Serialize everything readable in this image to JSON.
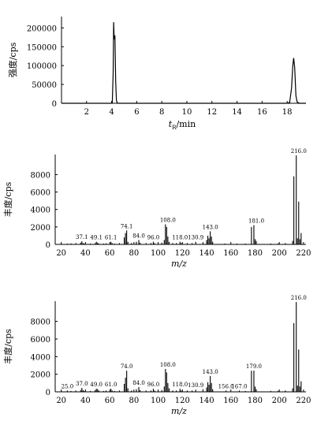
{
  "chart_data": [
    {
      "type": "line",
      "title": "",
      "ylabel": "强度/cps",
      "xlabel_main": "t",
      "xlabel_sub": "R",
      "xlabel_unit": "/min",
      "xlim": [
        0,
        19.5
      ],
      "ylim": [
        0,
        230000
      ],
      "xticks": [
        2,
        4,
        6,
        8,
        10,
        12,
        14,
        16,
        18
      ],
      "yticks": [
        0,
        50000,
        100000,
        150000,
        200000
      ],
      "grid": false,
      "series": [
        {
          "x": [
            0,
            3.95,
            4.05,
            4.12,
            4.16,
            4.2,
            4.26,
            4.32,
            4.38,
            4.45,
            4.6,
            17.9,
            18.2,
            18.35,
            18.45,
            18.52,
            18.6,
            18.7,
            18.8,
            19.0,
            19.5
          ],
          "y": [
            0,
            0,
            1000,
            80000,
            215000,
            170000,
            180000,
            60000,
            8000,
            500,
            0,
            0,
            2000,
            40000,
            100000,
            120000,
            95000,
            20000,
            3000,
            0,
            0
          ]
        }
      ]
    },
    {
      "type": "bar",
      "title": "",
      "ylabel": "丰度/cps",
      "xlabel": "m/z",
      "xlim": [
        15,
        222
      ],
      "ylim": [
        0,
        10300
      ],
      "xticks": [
        20,
        40,
        60,
        80,
        100,
        120,
        140,
        160,
        180,
        200,
        220
      ],
      "yticks": [
        0,
        2000,
        4000,
        6000,
        8000
      ],
      "grid": false,
      "peaks": [
        {
          "x": 20,
          "y": 80
        },
        {
          "x": 25,
          "y": 100
        },
        {
          "x": 28,
          "y": 120
        },
        {
          "x": 32,
          "y": 150
        },
        {
          "x": 36,
          "y": 200
        },
        {
          "x": 37,
          "y": 350
        },
        {
          "x": 38,
          "y": 150
        },
        {
          "x": 39,
          "y": 100
        },
        {
          "x": 44,
          "y": 100
        },
        {
          "x": 48,
          "y": 150
        },
        {
          "x": 49,
          "y": 300
        },
        {
          "x": 50,
          "y": 200
        },
        {
          "x": 51,
          "y": 100
        },
        {
          "x": 55,
          "y": 100
        },
        {
          "x": 57,
          "y": 120
        },
        {
          "x": 61,
          "y": 300
        },
        {
          "x": 62,
          "y": 150
        },
        {
          "x": 64,
          "y": 100
        },
        {
          "x": 68,
          "y": 150
        },
        {
          "x": 72,
          "y": 800
        },
        {
          "x": 73,
          "y": 1300
        },
        {
          "x": 74,
          "y": 1600
        },
        {
          "x": 75,
          "y": 300
        },
        {
          "x": 78,
          "y": 150
        },
        {
          "x": 82,
          "y": 300
        },
        {
          "x": 84,
          "y": 500
        },
        {
          "x": 85,
          "y": 200
        },
        {
          "x": 90,
          "y": 150
        },
        {
          "x": 94,
          "y": 150
        },
        {
          "x": 96,
          "y": 300
        },
        {
          "x": 97,
          "y": 150
        },
        {
          "x": 103,
          "y": 200
        },
        {
          "x": 105,
          "y": 500
        },
        {
          "x": 106,
          "y": 2300
        },
        {
          "x": 107,
          "y": 2000
        },
        {
          "x": 108,
          "y": 900
        },
        {
          "x": 109,
          "y": 300
        },
        {
          "x": 112,
          "y": 150
        },
        {
          "x": 115,
          "y": 150
        },
        {
          "x": 118,
          "y": 300
        },
        {
          "x": 119,
          "y": 150
        },
        {
          "x": 124,
          "y": 150
        },
        {
          "x": 128,
          "y": 150
        },
        {
          "x": 131,
          "y": 300
        },
        {
          "x": 137,
          "y": 250
        },
        {
          "x": 140,
          "y": 500
        },
        {
          "x": 141,
          "y": 1000
        },
        {
          "x": 142,
          "y": 700
        },
        {
          "x": 143,
          "y": 1500
        },
        {
          "x": 144,
          "y": 900
        },
        {
          "x": 145,
          "y": 300
        },
        {
          "x": 155,
          "y": 100
        },
        {
          "x": 165,
          "y": 100
        },
        {
          "x": 172,
          "y": 100
        },
        {
          "x": 177,
          "y": 2000
        },
        {
          "x": 179,
          "y": 2200
        },
        {
          "x": 180,
          "y": 600
        },
        {
          "x": 181,
          "y": 400
        },
        {
          "x": 193,
          "y": 100
        },
        {
          "x": 199,
          "y": 120
        },
        {
          "x": 205,
          "y": 150
        },
        {
          "x": 211,
          "y": 400
        },
        {
          "x": 212,
          "y": 7800
        },
        {
          "x": 214,
          "y": 10200
        },
        {
          "x": 215,
          "y": 700
        },
        {
          "x": 216,
          "y": 4900
        },
        {
          "x": 217,
          "y": 600
        },
        {
          "x": 218,
          "y": 1300
        }
      ],
      "annotations": [
        {
          "x": 37,
          "y": 350,
          "label": "37.1"
        },
        {
          "x": 49,
          "y": 300,
          "label": "49.1"
        },
        {
          "x": 61,
          "y": 300,
          "label": "61.1"
        },
        {
          "x": 74,
          "y": 1600,
          "label": "74.1"
        },
        {
          "x": 84,
          "y": 500,
          "label": "84.0"
        },
        {
          "x": 96,
          "y": 300,
          "label": "96.0"
        },
        {
          "x": 108,
          "y": 2300,
          "label": "108.0"
        },
        {
          "x": 118,
          "y": 300,
          "label": "118.0"
        },
        {
          "x": 131,
          "y": 300,
          "label": "130.9"
        },
        {
          "x": 143,
          "y": 1500,
          "label": "143.0"
        },
        {
          "x": 181,
          "y": 2200,
          "label": "181.0"
        },
        {
          "x": 216,
          "y": 10200,
          "label": "216.0"
        }
      ]
    },
    {
      "type": "bar",
      "title": "",
      "ylabel": "丰度/cps",
      "xlabel": "m/z",
      "xlim": [
        15,
        222
      ],
      "ylim": [
        0,
        10300
      ],
      "xticks": [
        20,
        40,
        60,
        80,
        100,
        120,
        140,
        160,
        180,
        200,
        220
      ],
      "yticks": [
        0,
        2000,
        4000,
        6000,
        8000
      ],
      "grid": false,
      "peaks": [
        {
          "x": 20,
          "y": 80
        },
        {
          "x": 25,
          "y": 150
        },
        {
          "x": 28,
          "y": 100
        },
        {
          "x": 32,
          "y": 150
        },
        {
          "x": 36,
          "y": 200
        },
        {
          "x": 37,
          "y": 450
        },
        {
          "x": 38,
          "y": 200
        },
        {
          "x": 39,
          "y": 100
        },
        {
          "x": 44,
          "y": 100
        },
        {
          "x": 48,
          "y": 200
        },
        {
          "x": 49,
          "y": 350
        },
        {
          "x": 50,
          "y": 300
        },
        {
          "x": 51,
          "y": 150
        },
        {
          "x": 55,
          "y": 100
        },
        {
          "x": 57,
          "y": 150
        },
        {
          "x": 61,
          "y": 350
        },
        {
          "x": 62,
          "y": 150
        },
        {
          "x": 64,
          "y": 100
        },
        {
          "x": 68,
          "y": 150
        },
        {
          "x": 72,
          "y": 900
        },
        {
          "x": 73,
          "y": 1600
        },
        {
          "x": 74,
          "y": 2400
        },
        {
          "x": 75,
          "y": 400
        },
        {
          "x": 78,
          "y": 150
        },
        {
          "x": 82,
          "y": 300
        },
        {
          "x": 84,
          "y": 550
        },
        {
          "x": 85,
          "y": 200
        },
        {
          "x": 90,
          "y": 150
        },
        {
          "x": 94,
          "y": 150
        },
        {
          "x": 96,
          "y": 350
        },
        {
          "x": 97,
          "y": 150
        },
        {
          "x": 103,
          "y": 200
        },
        {
          "x": 105,
          "y": 600
        },
        {
          "x": 106,
          "y": 2600
        },
        {
          "x": 107,
          "y": 2200
        },
        {
          "x": 108,
          "y": 1000
        },
        {
          "x": 109,
          "y": 400
        },
        {
          "x": 112,
          "y": 150
        },
        {
          "x": 115,
          "y": 150
        },
        {
          "x": 118,
          "y": 350
        },
        {
          "x": 119,
          "y": 150
        },
        {
          "x": 124,
          "y": 150
        },
        {
          "x": 128,
          "y": 150
        },
        {
          "x": 131,
          "y": 250
        },
        {
          "x": 137,
          "y": 300
        },
        {
          "x": 140,
          "y": 500
        },
        {
          "x": 141,
          "y": 1100
        },
        {
          "x": 142,
          "y": 800
        },
        {
          "x": 143,
          "y": 1800
        },
        {
          "x": 144,
          "y": 1000
        },
        {
          "x": 145,
          "y": 300
        },
        {
          "x": 156,
          "y": 150
        },
        {
          "x": 167,
          "y": 150
        },
        {
          "x": 172,
          "y": 100
        },
        {
          "x": 177,
          "y": 2400
        },
        {
          "x": 179,
          "y": 2400
        },
        {
          "x": 180,
          "y": 600
        },
        {
          "x": 181,
          "y": 300
        },
        {
          "x": 193,
          "y": 100
        },
        {
          "x": 199,
          "y": 120
        },
        {
          "x": 205,
          "y": 150
        },
        {
          "x": 211,
          "y": 400
        },
        {
          "x": 212,
          "y": 7800
        },
        {
          "x": 214,
          "y": 10200
        },
        {
          "x": 215,
          "y": 700
        },
        {
          "x": 216,
          "y": 4800
        },
        {
          "x": 217,
          "y": 600
        },
        {
          "x": 218,
          "y": 1200
        }
      ],
      "annotations": [
        {
          "x": 25,
          "y": 150,
          "label": "25.0"
        },
        {
          "x": 37,
          "y": 450,
          "label": "37.0"
        },
        {
          "x": 49,
          "y": 350,
          "label": "49.0"
        },
        {
          "x": 61,
          "y": 350,
          "label": "61.0"
        },
        {
          "x": 74,
          "y": 2400,
          "label": "74.0"
        },
        {
          "x": 84,
          "y": 550,
          "label": "84.0"
        },
        {
          "x": 96,
          "y": 350,
          "label": "96.0"
        },
        {
          "x": 108,
          "y": 2600,
          "label": "108.0"
        },
        {
          "x": 118,
          "y": 350,
          "label": "118.0"
        },
        {
          "x": 131,
          "y": 250,
          "label": "130.9"
        },
        {
          "x": 143,
          "y": 1800,
          "label": "143.0"
        },
        {
          "x": 156,
          "y": 150,
          "label": "156.0"
        },
        {
          "x": 167,
          "y": 150,
          "label": "167.0"
        },
        {
          "x": 179,
          "y": 2400,
          "label": "179.0"
        },
        {
          "x": 216,
          "y": 10200,
          "label": "216.0"
        }
      ]
    }
  ]
}
